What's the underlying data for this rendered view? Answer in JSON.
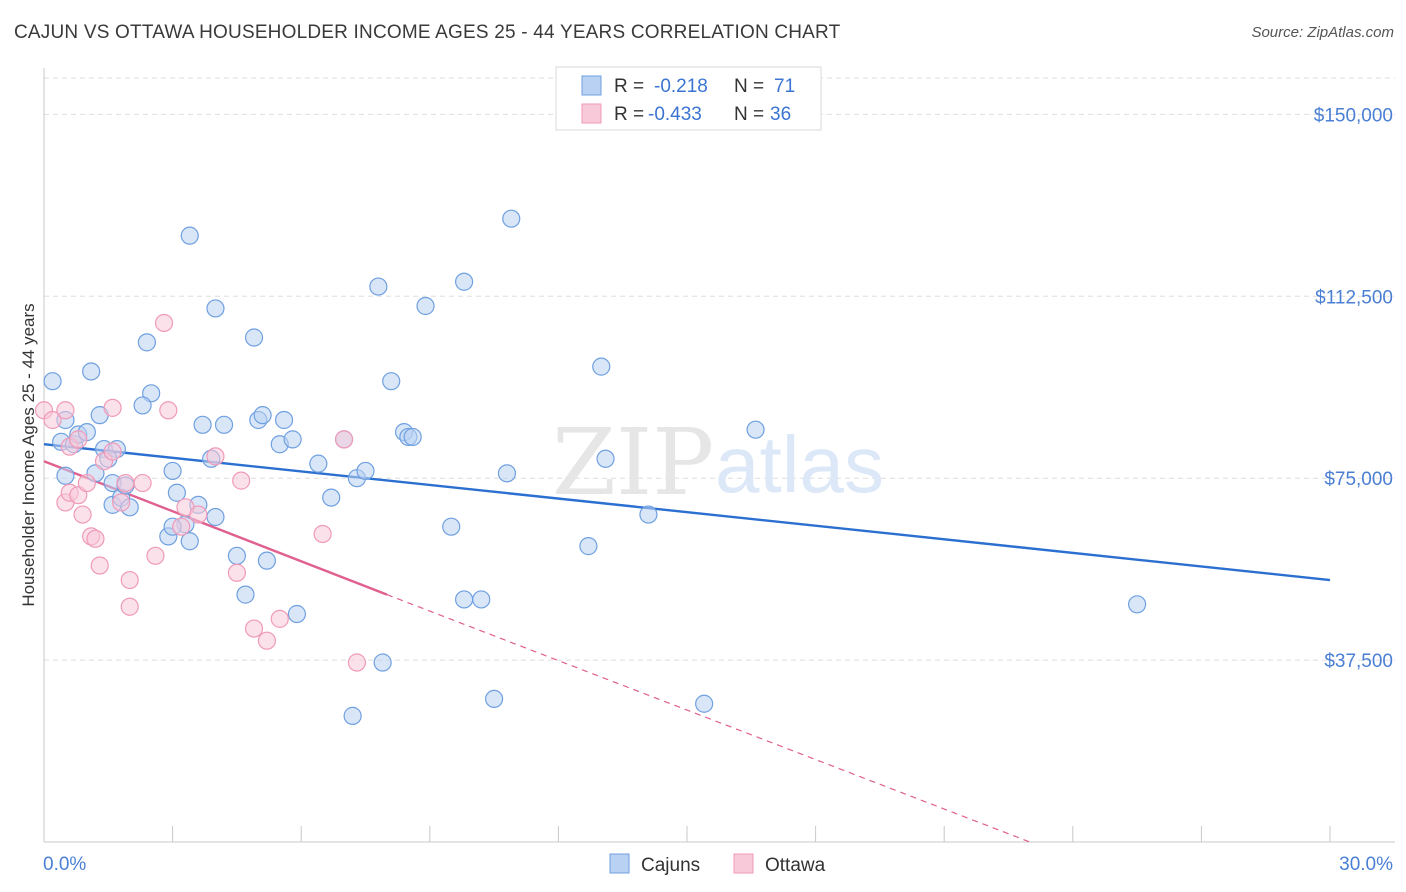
{
  "title": "CAJUN VS OTTAWA HOUSEHOLDER INCOME AGES 25 - 44 YEARS CORRELATION CHART",
  "source": "Source: ZipAtlas.com",
  "watermark": {
    "zip": "ZIP",
    "atlas": "atlas"
  },
  "chart_data": {
    "type": "scatter",
    "xlabel": "",
    "ylabel": "Householder Income Ages 25 - 44 years",
    "xlim": [
      0,
      30
    ],
    "ylim": [
      0,
      157500
    ],
    "x_tick_labels": {
      "left": "0.0%",
      "right": "30.0%"
    },
    "y_ticks": [
      {
        "value": 150000,
        "label": "$150,000"
      },
      {
        "value": 112500,
        "label": "$112,500"
      },
      {
        "value": 75000,
        "label": "$75,000"
      },
      {
        "value": 37500,
        "label": "$37,500"
      }
    ],
    "grid": true,
    "legend_position": "top-center",
    "stats": [
      {
        "r_label": "R =",
        "r": "-0.218",
        "n_label": "N =",
        "n": "71"
      },
      {
        "r_label": "R =",
        "r": "-0.433",
        "n_label": "N =",
        "n": "36"
      }
    ],
    "series": [
      {
        "name": "Cajuns",
        "color": "#6fa0e0",
        "fill": "#b9d1f2",
        "line_color": "#2b6fd1",
        "trend": {
          "x0": 0,
          "y0": 82000,
          "x1": 30,
          "y1": 54000
        },
        "points": [
          [
            0.2,
            95000
          ],
          [
            0.4,
            82500
          ],
          [
            0.5,
            87000
          ],
          [
            0.7,
            82000
          ],
          [
            0.8,
            84000
          ],
          [
            1.0,
            84500
          ],
          [
            0.5,
            75500
          ],
          [
            1.1,
            97000
          ],
          [
            1.4,
            81000
          ],
          [
            1.3,
            88000
          ],
          [
            1.2,
            76000
          ],
          [
            1.7,
            81000
          ],
          [
            1.5,
            79000
          ],
          [
            1.6,
            69500
          ],
          [
            1.8,
            71000
          ],
          [
            2.0,
            69000
          ],
          [
            2.5,
            92500
          ],
          [
            2.4,
            103000
          ],
          [
            3.0,
            76500
          ],
          [
            3.1,
            72000
          ],
          [
            3.3,
            65500
          ],
          [
            3.4,
            62000
          ],
          [
            3.6,
            69500
          ],
          [
            3.7,
            86000
          ],
          [
            3.9,
            79000
          ],
          [
            4.0,
            67000
          ],
          [
            4.2,
            86000
          ],
          [
            4.5,
            59000
          ],
          [
            4.7,
            51000
          ],
          [
            4.9,
            104000
          ],
          [
            5.0,
            87000
          ],
          [
            5.1,
            88000
          ],
          [
            5.5,
            82000
          ],
          [
            5.6,
            87000
          ],
          [
            5.8,
            83000
          ],
          [
            5.9,
            47000
          ],
          [
            6.4,
            78000
          ],
          [
            6.7,
            71000
          ],
          [
            7.0,
            83000
          ],
          [
            7.3,
            75000
          ],
          [
            7.5,
            76500
          ],
          [
            7.8,
            114500
          ],
          [
            8.1,
            95000
          ],
          [
            8.4,
            84500
          ],
          [
            8.5,
            83500
          ],
          [
            8.6,
            83500
          ],
          [
            8.9,
            110500
          ],
          [
            9.5,
            65000
          ],
          [
            9.8,
            50000
          ],
          [
            10.2,
            50000
          ],
          [
            10.5,
            29500
          ],
          [
            10.8,
            76000
          ],
          [
            10.9,
            128500
          ],
          [
            12.7,
            61000
          ],
          [
            13.0,
            98000
          ],
          [
            13.1,
            79000
          ],
          [
            14.1,
            67500
          ],
          [
            15.4,
            28500
          ],
          [
            16.6,
            85000
          ],
          [
            25.5,
            49000
          ],
          [
            3.4,
            125000
          ],
          [
            4.0,
            110000
          ],
          [
            2.9,
            63000
          ],
          [
            3.0,
            65000
          ],
          [
            5.2,
            58000
          ],
          [
            7.2,
            26000
          ],
          [
            7.9,
            37000
          ],
          [
            9.8,
            115500
          ],
          [
            1.6,
            74000
          ],
          [
            2.3,
            90000
          ],
          [
            1.9,
            73500
          ]
        ]
      },
      {
        "name": "Ottawa",
        "color": "#f09ab8",
        "fill": "#f8c9d8",
        "line_color": "#e0608f",
        "trend": {
          "x0": 0,
          "y0": 78500,
          "x1": 8.0,
          "y1": 51000
        },
        "trend_ext": {
          "x0": 8.0,
          "y0": 51000,
          "x1": 23,
          "y1": 0
        },
        "points": [
          [
            0.0,
            89000
          ],
          [
            0.2,
            87000
          ],
          [
            0.6,
            81500
          ],
          [
            0.8,
            83000
          ],
          [
            0.5,
            70000
          ],
          [
            0.6,
            72000
          ],
          [
            0.8,
            71500
          ],
          [
            0.9,
            67500
          ],
          [
            1.0,
            74000
          ],
          [
            1.1,
            63000
          ],
          [
            1.2,
            62500
          ],
          [
            1.3,
            57000
          ],
          [
            1.4,
            78500
          ],
          [
            1.6,
            89500
          ],
          [
            1.6,
            80500
          ],
          [
            1.8,
            70000
          ],
          [
            1.9,
            74000
          ],
          [
            2.0,
            54000
          ],
          [
            2.0,
            48500
          ],
          [
            2.3,
            74000
          ],
          [
            2.6,
            59000
          ],
          [
            2.8,
            107000
          ],
          [
            2.9,
            89000
          ],
          [
            3.2,
            65000
          ],
          [
            3.3,
            69000
          ],
          [
            3.6,
            67500
          ],
          [
            4.0,
            79500
          ],
          [
            4.5,
            55500
          ],
          [
            4.6,
            74500
          ],
          [
            4.9,
            44000
          ],
          [
            5.2,
            41500
          ],
          [
            5.5,
            46000
          ],
          [
            6.5,
            63500
          ],
          [
            7.0,
            83000
          ],
          [
            7.3,
            37000
          ],
          [
            0.5,
            89000
          ]
        ]
      }
    ]
  }
}
